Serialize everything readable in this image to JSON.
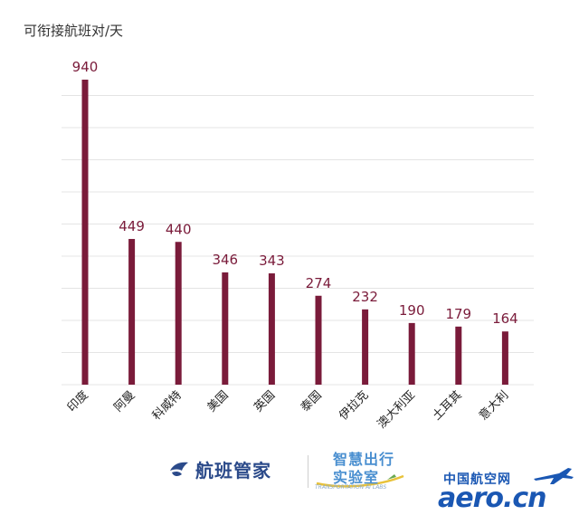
{
  "chart_data": {
    "type": "bar",
    "ylabel": "可衔接航班对/天",
    "categories": [
      "印度",
      "阿曼",
      "科威特",
      "美国",
      "英国",
      "泰国",
      "伊拉克",
      "澳大利亚",
      "土耳其",
      "意大利"
    ],
    "values": [
      940,
      449,
      440,
      346,
      343,
      274,
      232,
      190,
      179,
      164
    ],
    "ylim": [
      0,
      940
    ],
    "grid": true,
    "bar_color": "#7a1b3a",
    "grid_color": "#e4e4e4"
  },
  "footer": {
    "logo1_label": "航班管家",
    "logo1_icon": "dove-icon",
    "logo2_line1": "智慧出行",
    "logo2_line2": "实验室",
    "logo2_sub": "TRANSPORTATION AI LABS",
    "logo3_cn": "中国航空网",
    "logo3_en": "aero.cn",
    "accent_blue": "#1a57b3"
  }
}
